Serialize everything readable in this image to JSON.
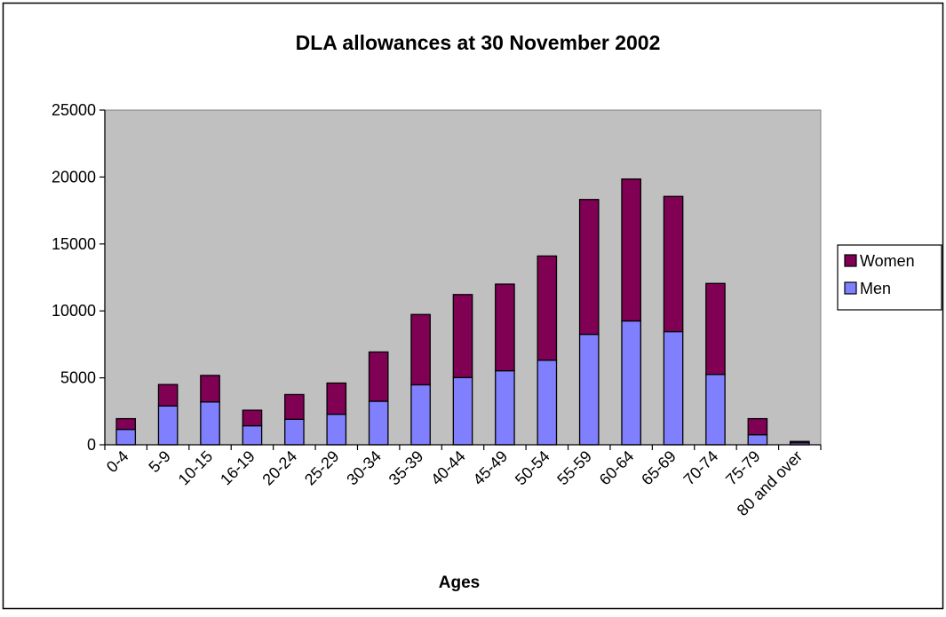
{
  "chart_data": {
    "type": "bar",
    "stacked": true,
    "title": "DLA allowances at 30 November 2002",
    "xlabel": "Ages",
    "ylabel": "",
    "ylim": [
      0,
      25000
    ],
    "yticks": [
      0,
      5000,
      10000,
      15000,
      20000,
      25000
    ],
    "grid": false,
    "legend_position": "right",
    "plot_background": "#c0c0c0",
    "categories": [
      "0-4",
      "5-9",
      "10-15",
      "16-19",
      "20-24",
      "25-29",
      "30-34",
      "35-39",
      "40-44",
      "45-49",
      "50-54",
      "55-59",
      "60-64",
      "65-69",
      "70-74",
      "75-79",
      "80 and over"
    ],
    "series": [
      {
        "name": "Men",
        "color": "#8080ff",
        "values": [
          1150,
          2900,
          3200,
          1420,
          1900,
          2280,
          3250,
          4480,
          5020,
          5530,
          6320,
          8250,
          9250,
          8450,
          5250,
          750,
          140
        ]
      },
      {
        "name": "Women",
        "color": "#800054",
        "values": [
          800,
          1600,
          1980,
          1160,
          1850,
          2330,
          3680,
          5250,
          6200,
          6470,
          7780,
          10070,
          10600,
          10100,
          6800,
          1200,
          110
        ]
      }
    ],
    "legend_order": [
      "Women",
      "Men"
    ]
  }
}
